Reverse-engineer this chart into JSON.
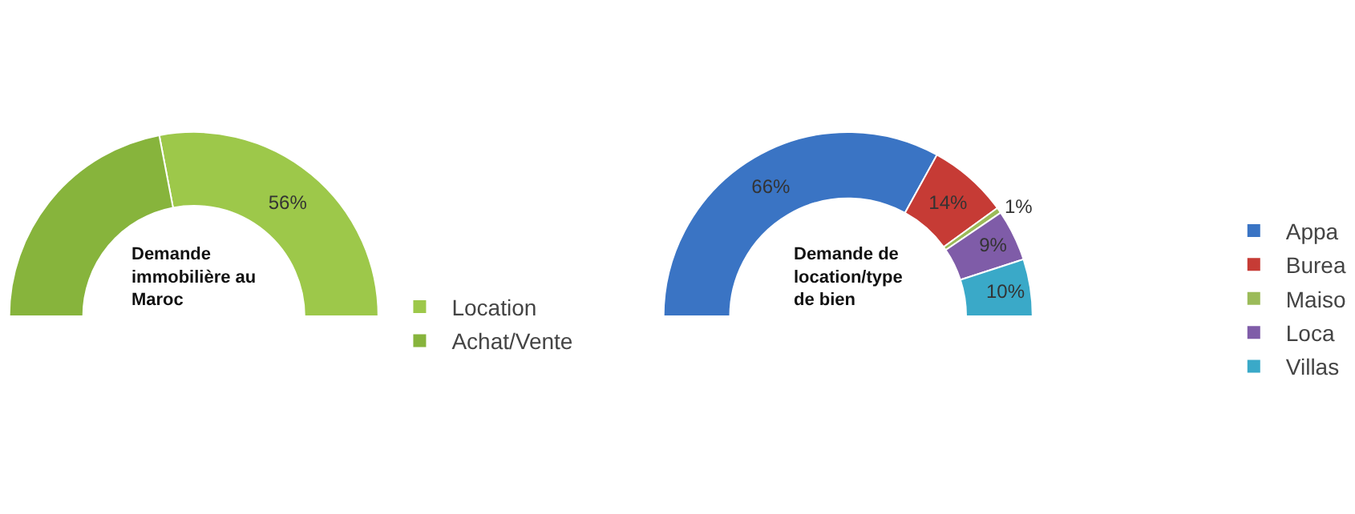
{
  "chart_data": [
    {
      "type": "donut",
      "title": "Demande immobilière au Maroc",
      "categories": [
        "Location",
        "Achat/Vente"
      ],
      "values": [
        56,
        44
      ],
      "colors": [
        "#9dc84a",
        "#87b43c"
      ],
      "value_labels": [
        "56%",
        null
      ],
      "legend": "right"
    },
    {
      "type": "donut",
      "title": "Demande de location/type de bien",
      "categories": [
        "Appa",
        "Burea",
        "Maiso",
        "Loca",
        "Villas"
      ],
      "values": [
        66,
        14,
        1,
        9,
        10
      ],
      "colors": [
        "#3a74c4",
        "#c63b35",
        "#9bbb59",
        "#7f5ca8",
        "#3aa9c8"
      ],
      "value_labels": [
        "66%",
        "14%",
        "1%",
        "9%",
        "10%"
      ],
      "legend": "right"
    }
  ]
}
